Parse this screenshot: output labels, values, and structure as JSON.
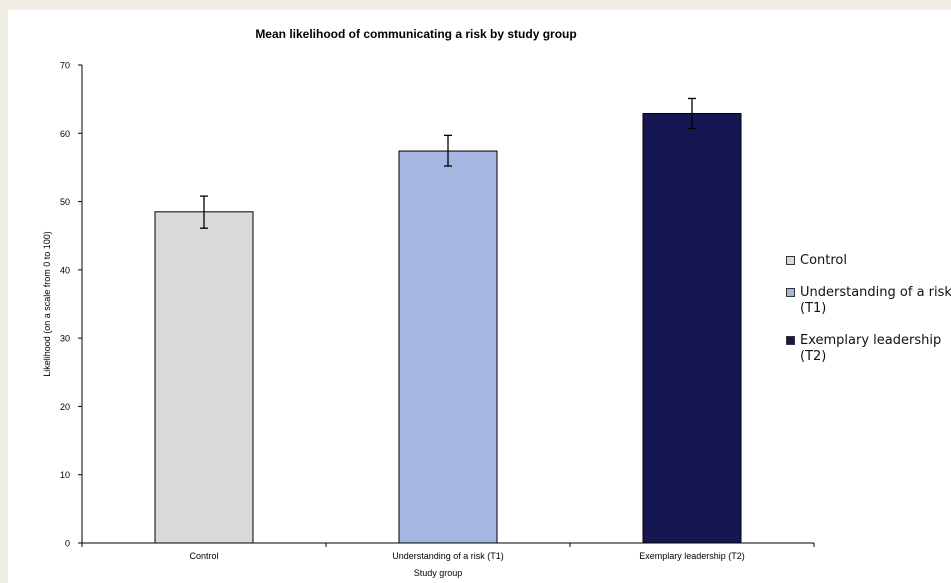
{
  "chart_data": {
    "type": "bar",
    "title": "Mean likelihood of communicating a risk by study group",
    "xlabel": "Study group",
    "ylabel": "Likelihood (on a scale from 0 to 100)",
    "ylim": [
      0,
      70
    ],
    "yticks": [
      "0",
      "10",
      "20",
      "30",
      "40",
      "50",
      "60",
      "70"
    ],
    "categories": [
      "Control",
      "Understanding of a risk (T1)",
      "Exemplary leadership (T2)"
    ],
    "values": [
      48.5,
      57.4,
      62.9
    ],
    "error_low": [
      46.1,
      55.2,
      60.7
    ],
    "error_high": [
      50.8,
      59.7,
      65.1
    ],
    "colors": [
      "#d9d9d9",
      "#a6b6e2",
      "#161652"
    ],
    "grid": false,
    "legend_position": "right",
    "legend": [
      {
        "line1": "Control",
        "line2": "",
        "color": "#d9d9d9"
      },
      {
        "line1": "Understanding of a risk",
        "line2": "(T1)",
        "color": "#a6b6e2"
      },
      {
        "line1": "Exemplary leadership",
        "line2": "(T2)",
        "color": "#161652"
      }
    ]
  }
}
